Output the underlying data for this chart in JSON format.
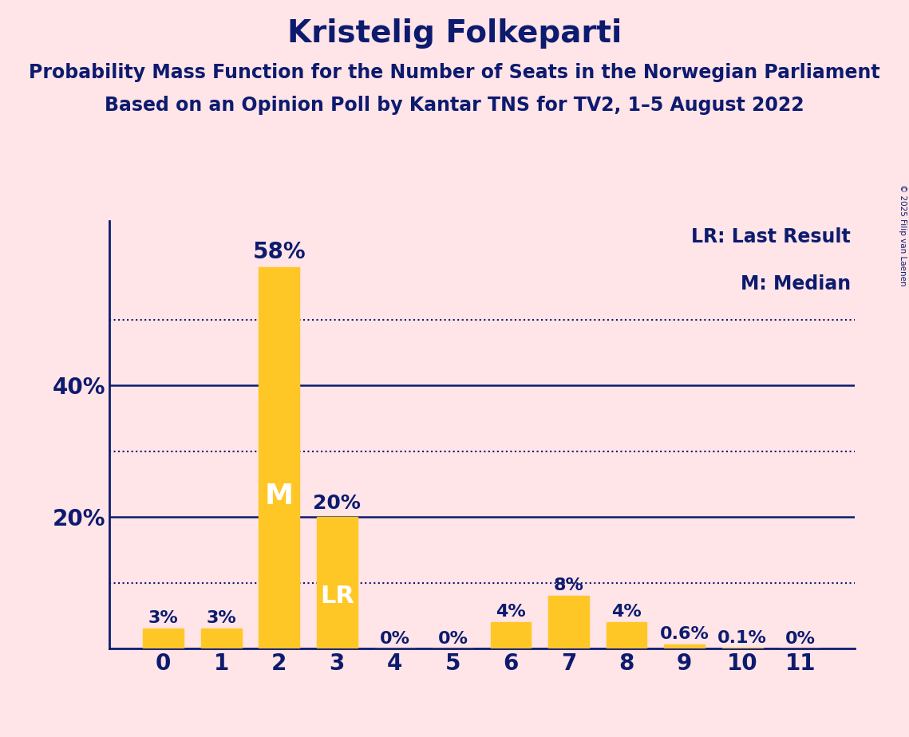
{
  "title": "Kristelig Folkeparti",
  "subtitle1": "Probability Mass Function for the Number of Seats in the Norwegian Parliament",
  "subtitle2": "Based on an Opinion Poll by Kantar TNS for TV2, 1–5 August 2022",
  "copyright": "© 2025 Filip van Laenen",
  "categories": [
    0,
    1,
    2,
    3,
    4,
    5,
    6,
    7,
    8,
    9,
    10,
    11
  ],
  "values": [
    0.03,
    0.03,
    0.58,
    0.2,
    0.0,
    0.0,
    0.04,
    0.08,
    0.04,
    0.006,
    0.001,
    0.0
  ],
  "labels": [
    "3%",
    "3%",
    "58%",
    "20%",
    "0%",
    "0%",
    "4%",
    "8%",
    "4%",
    "0.6%",
    "0.1%",
    "0%"
  ],
  "bar_color": "#FFC725",
  "bg_color": "#FFE4E8",
  "text_color": "#0D1B6E",
  "median_bar": 2,
  "lr_bar": 3,
  "legend_lr": "LR: Last Result",
  "legend_m": "M: Median",
  "ylim": [
    0,
    0.65
  ],
  "yticks": [
    0.0,
    0.2,
    0.4
  ],
  "ytick_labels": [
    "",
    "20%",
    "40%"
  ],
  "dotted_lines": [
    0.1,
    0.3,
    0.5
  ],
  "solid_lines": [
    0.2,
    0.4
  ],
  "title_fontsize": 28,
  "subtitle_fontsize": 17,
  "label_fontsize": 16,
  "axis_fontsize": 20,
  "legend_fontsize": 17
}
